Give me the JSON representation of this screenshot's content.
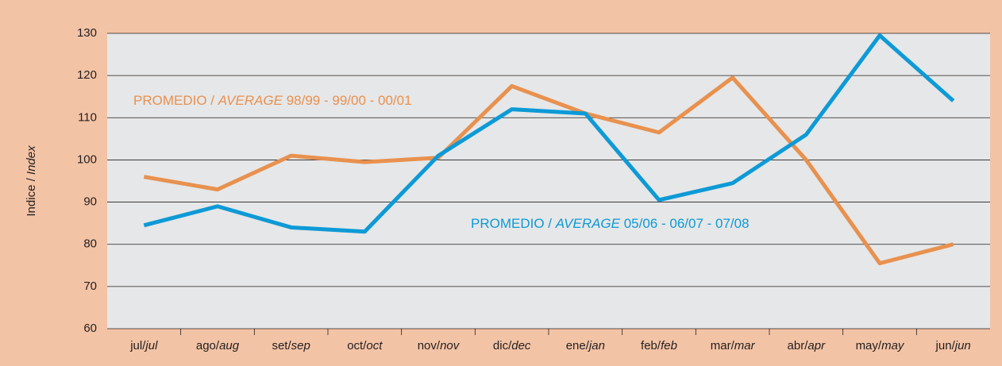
{
  "chart_data": {
    "type": "line",
    "y_label": "Indice / Index",
    "categories": [
      "jul/jul",
      "ago/aug",
      "set/sep",
      "oct/oct",
      "nov/nov",
      "dic/dec",
      "ene/jan",
      "feb/feb",
      "mar/mar",
      "abr/apr",
      "may/may",
      "jun/jun"
    ],
    "series": [
      {
        "name": "PROMEDIO / AVERAGE 98/99 - 99/00 - 00/01",
        "color": "#e8914f",
        "values": [
          96,
          93,
          101,
          99.5,
          100.5,
          117.5,
          111,
          106.5,
          119.5,
          100,
          75.5,
          80
        ]
      },
      {
        "name": "PROMEDIO / AVERAGE 05/06 - 06/07 - 07/08",
        "color": "#0d9ad6",
        "values": [
          84.5,
          89,
          84,
          83,
          101,
          112,
          111,
          90.5,
          94.5,
          106,
          129.5,
          114
        ]
      }
    ],
    "ylim": [
      60,
      130
    ],
    "yticks": [
      60,
      70,
      80,
      90,
      100,
      110,
      120,
      130
    ],
    "grid": true
  }
}
